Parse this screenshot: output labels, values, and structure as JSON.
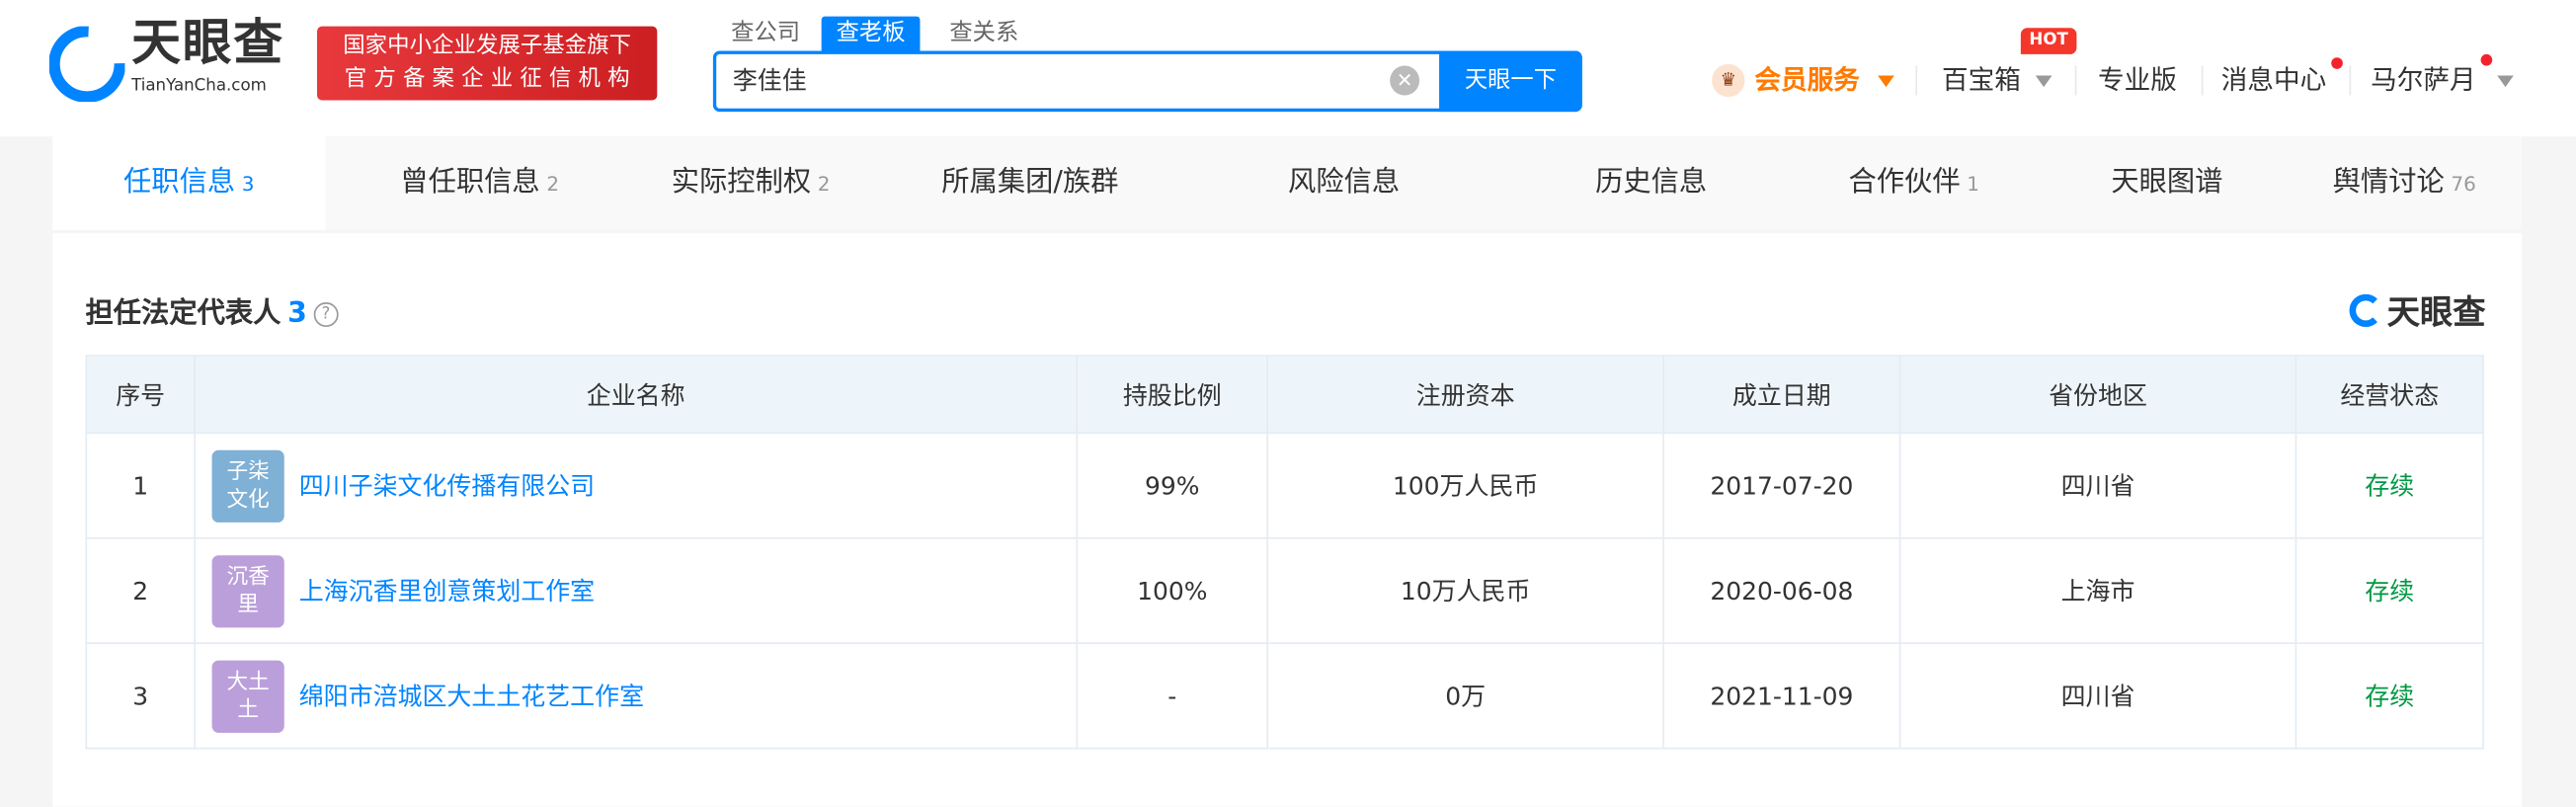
{
  "header": {
    "logo_text": "天眼查",
    "logo_sub": "TianYanCha.com",
    "banner": [
      "国家中小企业发展子基金旗下",
      "官 方 备 案 企 业 征 信 机 构"
    ],
    "search_tabs": [
      "查公司",
      "查老板",
      "查关系"
    ],
    "search_value": "李佳佳",
    "search_button": "天眼一下",
    "nav": {
      "vip": "会员服务",
      "toolbox": "百宝箱",
      "hot": "HOT",
      "pro": "专业版",
      "messages": "消息中心",
      "user": "马尔萨月"
    },
    "colors": {
      "brand": "#0084ff",
      "vip": "#ff7a00",
      "banner": "#e0292d"
    }
  },
  "tabs": [
    {
      "label": "任职信息",
      "count": "3"
    },
    {
      "label": "曾任职信息",
      "count": "2"
    },
    {
      "label": "实际控制权",
      "count": "2"
    },
    {
      "label": "所属集团/族群",
      "count": ""
    },
    {
      "label": "风险信息",
      "count": ""
    },
    {
      "label": "历史信息",
      "count": ""
    },
    {
      "label": "合作伙伴",
      "count": "1"
    },
    {
      "label": "天眼图谱",
      "count": ""
    },
    {
      "label": "舆情讨论",
      "count": "76"
    }
  ],
  "section": {
    "title": "担任法定代表人",
    "count": "3",
    "help": "?",
    "logo": "天眼查"
  },
  "table": {
    "headers": [
      "序号",
      "企业名称",
      "持股比例",
      "注册资本",
      "成立日期",
      "省份地区",
      "经营状态"
    ],
    "rows": [
      {
        "no": "1",
        "badge": "子柒文化",
        "badge_color": "#7fb0d6",
        "name": "四川子柒文化传播有限公司",
        "share": "99%",
        "capital": "100万人民币",
        "date": "2017-07-20",
        "region": "四川省",
        "status": "存续"
      },
      {
        "no": "2",
        "badge": "沉香里",
        "badge_color": "#bb9fdb",
        "name": "上海沉香里创意策划工作室",
        "share": "100%",
        "capital": "10万人民币",
        "date": "2020-06-08",
        "region": "上海市",
        "status": "存续"
      },
      {
        "no": "3",
        "badge": "大土土",
        "badge_color": "#bb9fdb",
        "name": "绵阳市涪城区大土土花艺工作室",
        "share": "-",
        "capital": "0万",
        "date": "2021-11-09",
        "region": "四川省",
        "status": "存续"
      }
    ]
  }
}
